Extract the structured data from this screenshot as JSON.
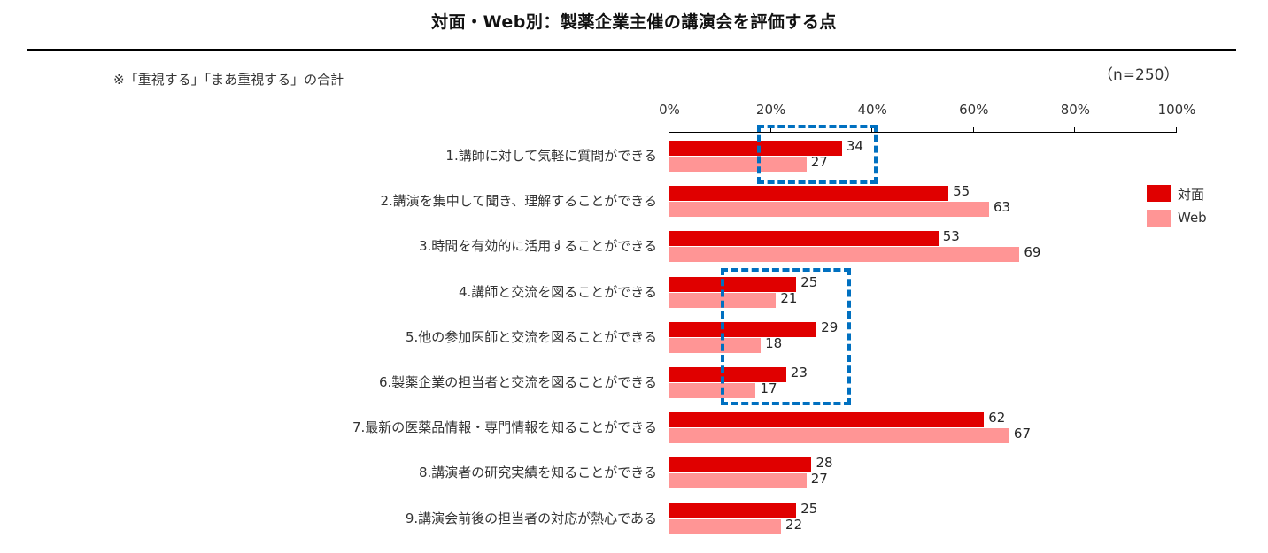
{
  "title": "対面・Web別：製薬企業主催の講演会を評価する点",
  "note": "※「重視する」「まあ重視する」の合計",
  "sample_size": "（n=250）",
  "colors": {
    "face_to_face": "#e00000",
    "web": "#ff9595",
    "highlight": "#0070c0"
  },
  "legend": [
    {
      "label": "対面",
      "color": "#e00000"
    },
    {
      "label": "Web",
      "color": "#ff9595"
    }
  ],
  "axis": {
    "ticks": [
      "0%",
      "20%",
      "40%",
      "60%",
      "80%",
      "100%"
    ]
  },
  "categories": [
    "1.講師に対して気軽に質問ができる",
    "2.講演を集中して聞き、理解することができる",
    "3.時間を有効的に活用することができる",
    "4.講師と交流を図ることができる",
    "5.他の参加医師と交流を図ることができる",
    "6.製薬企業の担当者と交流を図ることができる",
    "7.最新の医薬品情報・専門情報を知ることができる",
    "8.講演者の研究実績を知ることができる",
    "9.講演会前後の担当者の対応が熱心である"
  ],
  "values": {
    "face_to_face": [
      "34",
      "55",
      "53",
      "25",
      "29",
      "23",
      "62",
      "28",
      "25"
    ],
    "web": [
      "27",
      "63",
      "69",
      "21",
      "18",
      "17",
      "67",
      "27",
      "22"
    ]
  },
  "chart_data": {
    "type": "bar",
    "orientation": "horizontal",
    "title": "対面・Web別：製薬企業主催の講演会を評価する点",
    "subtitle": "※「重視する」「まあ重視する」の合計",
    "annotation": "（n=250）",
    "categories": [
      "1.講師に対して気軽に質問ができる",
      "2.講演を集中して聞き、理解することができる",
      "3.時間を有効的に活用することができる",
      "4.講師と交流を図ることができる",
      "5.他の参加医師と交流を図ることができる",
      "6.製薬企業の担当者と交流を図ることができる",
      "7.最新の医薬品情報・専門情報を知ることができる",
      "8.講演者の研究実績を知ることができる",
      "9.講演会前後の担当者の対応が熱心である"
    ],
    "series": [
      {
        "name": "対面",
        "color": "#e00000",
        "values": [
          34,
          55,
          53,
          25,
          29,
          23,
          62,
          28,
          25
        ]
      },
      {
        "name": "Web",
        "color": "#ff9595",
        "values": [
          27,
          63,
          69,
          21,
          18,
          17,
          67,
          27,
          22
        ]
      }
    ],
    "xlabel": "",
    "ylabel": "",
    "xlim": [
      0,
      100
    ],
    "xticks": [
      "0%",
      "20%",
      "40%",
      "60%",
      "80%",
      "100%"
    ],
    "grid": false,
    "legend_position": "right",
    "highlights": [
      {
        "categories": [
          1
        ],
        "style": "blue dashed box"
      },
      {
        "categories": [
          4,
          5,
          6
        ],
        "style": "blue dashed box"
      }
    ]
  }
}
